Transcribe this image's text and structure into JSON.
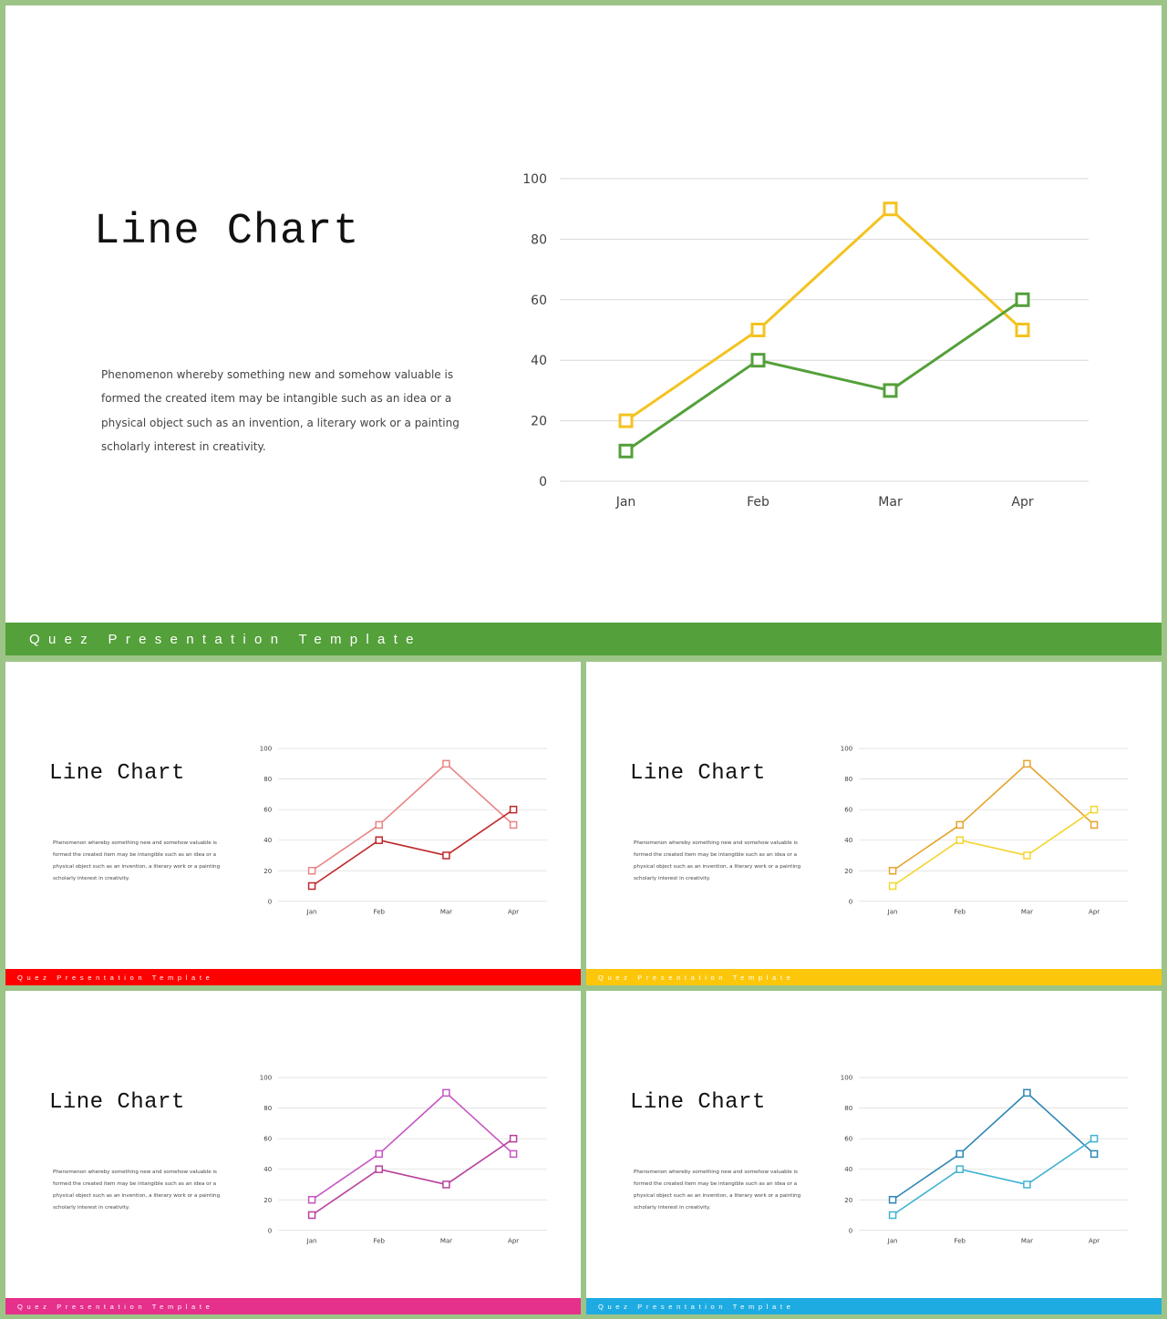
{
  "slides": [
    {
      "id": "slide-main",
      "title": "Line Chart",
      "paragraph": [
        "Phenomenon  whereby  something  new  and somehow  valuable is",
        "formed the created item may be intangible such as an idea or a",
        "physical object such as an invention, a literary work or a painting",
        "scholarly interest in creativity."
      ],
      "footer": "Quez Presentation Template",
      "footer_color": "#54a03a",
      "series_colors": [
        "#f3c320",
        "#54a03a"
      ]
    },
    {
      "id": "slide-red",
      "title": "Line Chart",
      "paragraph": [
        "Phenomenon  whereby  something  new  and somehow  valuable is",
        "formed the created item may be intangible such as an idea or a",
        "physical object such as an invention, a literary work or a painting",
        "scholarly interest in creativity."
      ],
      "footer": "Quez Presentation Template",
      "footer_color": "#ff0000",
      "series_colors": [
        "#e98484",
        "#c0282a"
      ]
    },
    {
      "id": "slide-yellow",
      "title": "Line Chart",
      "paragraph": [
        "Phenomenon  whereby  something  new  and somehow  valuable is",
        "formed the created item may be intangible such as an idea or a",
        "physical object such as an invention, a literary work or a painting",
        "scholarly interest in creativity."
      ],
      "footer": "Quez Presentation Template",
      "footer_color": "#fcc70b",
      "series_colors": [
        "#e6a42c",
        "#f3d530"
      ]
    },
    {
      "id": "slide-pink",
      "title": "Line Chart",
      "paragraph": [
        "Phenomenon  whereby  something  new  and somehow  valuable is",
        "formed the created item may be intangible such as an idea or a",
        "physical object such as an invention, a literary work or a painting",
        "scholarly interest in creativity."
      ],
      "footer": "Quez Presentation Template",
      "footer_color": "#e5308c",
      "series_colors": [
        "#c555c4",
        "#b8419b"
      ]
    },
    {
      "id": "slide-blue",
      "title": "Line Chart",
      "paragraph": [
        "Phenomenon  whereby  something  new  and somehow  valuable is",
        "formed the created item may be intangible such as an idea or a",
        "physical object such as an invention, a literary work or a painting",
        "scholarly interest in creativity."
      ],
      "footer": "Quez Presentation Template",
      "footer_color": "#1eabe1",
      "series_colors": [
        "#2e86b4",
        "#41b3d3"
      ]
    }
  ],
  "chart_data": {
    "type": "line",
    "categories": [
      "Jan",
      "Feb",
      "Mar",
      "Apr"
    ],
    "series": [
      {
        "values": [
          20,
          50,
          90,
          50
        ]
      },
      {
        "values": [
          10,
          40,
          30,
          60
        ]
      }
    ],
    "ylim": [
      0,
      100
    ],
    "yticks": [
      0,
      20,
      40,
      60,
      80,
      100
    ],
    "grid": true,
    "legend": "none",
    "marker": "hollow-square"
  }
}
